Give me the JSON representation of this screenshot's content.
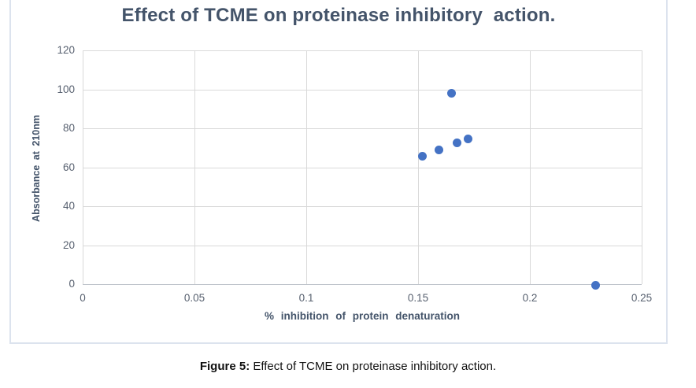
{
  "figure": {
    "caption_label": "Figure 5:",
    "caption_text": "Effect of TCME on proteinase inhibitory action."
  },
  "chart_data": {
    "type": "scatter",
    "title": "Effect of TCME on proteinase inhibitory  action.",
    "xlabel": "% inhibition of protein denaturation",
    "ylabel": "Absorbance at 210nm",
    "xlim": [
      0,
      0.25
    ],
    "ylim": [
      0,
      120
    ],
    "x_ticks": [
      0,
      0.05,
      0.1,
      0.15,
      0.2,
      0.25
    ],
    "x_tick_labels": [
      "0",
      "0.05",
      "0.1",
      "0.15",
      "0.2",
      "0.25"
    ],
    "y_ticks": [
      0,
      20,
      40,
      60,
      80,
      100,
      120
    ],
    "y_tick_labels": [
      "0",
      "20",
      "40",
      "60",
      "80",
      "100",
      "120"
    ],
    "grid": true,
    "legend": false,
    "points": [
      {
        "x": 0.152,
        "y": 65.5
      },
      {
        "x": 0.1595,
        "y": 69
      },
      {
        "x": 0.1675,
        "y": 72.5
      },
      {
        "x": 0.1725,
        "y": 74.5
      },
      {
        "x": 0.165,
        "y": 98
      },
      {
        "x": 0.2295,
        "y": -0.5
      }
    ],
    "colors": {
      "marker": "#4472C4",
      "gridline": "#D9D9D9",
      "axis_line": "#BFC4CC",
      "title": "#44546A",
      "axis_label": "#44546A",
      "tick_label": "#57606F",
      "figure_border": "#DCE3EE"
    }
  }
}
